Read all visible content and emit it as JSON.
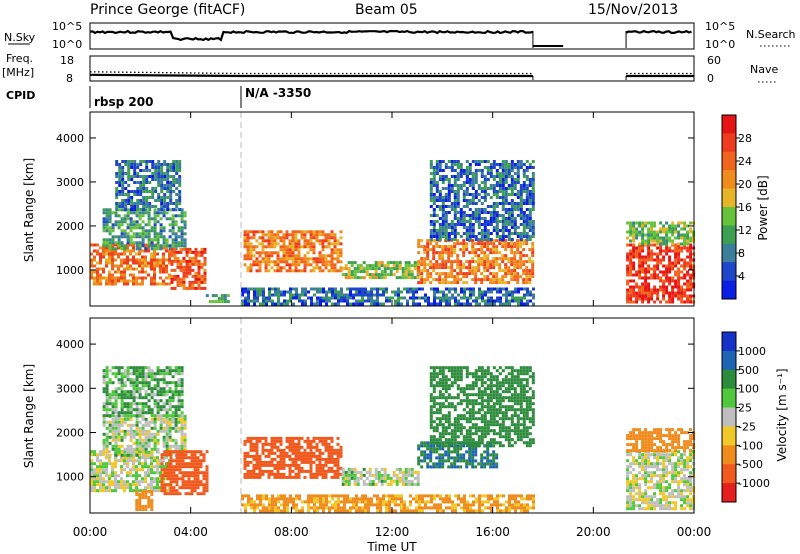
{
  "header": {
    "station": "Prince George (fitACF)",
    "beam": "Beam 05",
    "date": "15/Nov/2013"
  },
  "summary": {
    "nsky_label": "N.Sky",
    "nsky_ticks": [
      "10^5",
      "10^0"
    ],
    "nsearch_label": "N.Search",
    "nsearch_ticks": [
      "10^5",
      "10^0"
    ],
    "freq_label": "Freq.",
    "freq_unit": "[MHz]",
    "freq_ticks": [
      "18",
      "8"
    ],
    "nave_label": "Nave",
    "nave_ticks": [
      "60",
      "0"
    ],
    "cpid_label": "CPID",
    "cpid_segments": [
      {
        "start_hr": 0.0,
        "label": "rbsp 200"
      },
      {
        "start_hr": 6.0,
        "label": "N/A -3350"
      }
    ]
  },
  "axes": {
    "x_label": "Time UT",
    "x_ticks": [
      "00:00",
      "04:00",
      "08:00",
      "12:00",
      "16:00",
      "20:00",
      "00:00"
    ],
    "x_range_hr": [
      0,
      24
    ],
    "y_label": "Slant Range [km]",
    "y_ticks": [
      "1000",
      "2000",
      "3000",
      "4000"
    ],
    "y_range_km": [
      180,
      4590
    ]
  },
  "colors": {
    "power_scale": [
      "#0a1ee6",
      "#1e46c8",
      "#3c7f9a",
      "#3ca050",
      "#66c23a",
      "#e6b428",
      "#f08c1e",
      "#f0641e",
      "#f03c1e",
      "#e61414"
    ],
    "velocity_scale": [
      "#1432c8",
      "#1e64b4",
      "#2d8c3c",
      "#50c83c",
      "#bebebe",
      "#f0c828",
      "#f08c1e",
      "#f05a1e",
      "#e61e1e"
    ]
  },
  "chart_data": [
    {
      "type": "line",
      "title": "N.Sky / N.Search",
      "x_range_hr": [
        0,
        24
      ],
      "log_scale": true,
      "segments_hr": [
        [
          0.0,
          17.6
        ],
        [
          21.3,
          24.0
        ]
      ],
      "nsky_level": "near 10^5 with dips around 04:00 and 17:30",
      "nsearch_level": "near 10^0"
    },
    {
      "type": "line",
      "title": "Freq. / Nave",
      "x_range_hr": [
        0,
        24
      ],
      "freq_mhz": [
        {
          "x_hr": 0,
          "value": 10.5
        },
        {
          "x_hr": 6,
          "value": 10.0
        },
        {
          "x_hr": 17.6,
          "value": 10.0
        },
        {
          "x_hr": 21.3,
          "value": 10.0
        },
        {
          "x_hr": 24,
          "value": 10.0
        }
      ],
      "nave": [
        {
          "x_hr": 0,
          "value": 22
        },
        {
          "x_hr": 6,
          "value": 18
        },
        {
          "x_hr": 17.6,
          "value": 18
        },
        {
          "x_hr": 21.3,
          "value": 18
        },
        {
          "x_hr": 24,
          "value": 18
        }
      ]
    },
    {
      "type": "heatmap",
      "title": "Power",
      "colorbar_label": "Power [dB]",
      "colorbar_ticks": [
        "28",
        "24",
        "20",
        "16",
        "12",
        "8",
        "4"
      ],
      "value_range": [
        0,
        30
      ],
      "ylim": [
        180,
        4590
      ],
      "regions": [
        {
          "name": "band-a",
          "t0": 0.0,
          "t1": 3.2,
          "r0": 700,
          "r1": 1600,
          "p": 22
        },
        {
          "name": "band-b",
          "t0": 0.5,
          "t1": 3.8,
          "r0": 1500,
          "r1": 2400,
          "p": 10
        },
        {
          "name": "band-c",
          "t0": 3.2,
          "t1": 4.6,
          "r0": 600,
          "r1": 1500,
          "p": 24
        },
        {
          "name": "band-d",
          "t0": 1.0,
          "t1": 3.6,
          "r0": 2400,
          "r1": 3500,
          "p": 7
        },
        {
          "name": "band-e",
          "t0": 4.6,
          "t1": 5.5,
          "r0": 300,
          "r1": 450,
          "p": 10
        },
        {
          "name": "band-f",
          "t0": 6.1,
          "t1": 10.0,
          "r0": 1000,
          "r1": 1900,
          "p": 21
        },
        {
          "name": "band-g",
          "t0": 6.0,
          "t1": 17.6,
          "r0": 200,
          "r1": 600,
          "p": 6
        },
        {
          "name": "band-h",
          "t0": 10.0,
          "t1": 13.0,
          "r0": 800,
          "r1": 1200,
          "p": 14
        },
        {
          "name": "band-i",
          "t0": 13.0,
          "t1": 17.6,
          "r0": 700,
          "r1": 1700,
          "p": 21
        },
        {
          "name": "band-j",
          "t0": 13.5,
          "t1": 17.6,
          "r0": 1700,
          "r1": 3500,
          "p": 6
        },
        {
          "name": "band-k",
          "t0": 21.3,
          "t1": 24.0,
          "r0": 300,
          "r1": 1600,
          "p": 26
        },
        {
          "name": "band-l",
          "t0": 21.3,
          "t1": 24.0,
          "r0": 1600,
          "r1": 2100,
          "p": 13
        }
      ]
    },
    {
      "type": "heatmap",
      "title": "Velocity",
      "colorbar_label": "Velocity [m s⁻¹]",
      "colorbar_ticks": [
        "1000",
        "500",
        "100",
        "25",
        "-25",
        "-100",
        "-500",
        "-1000"
      ],
      "value_range": [
        -1000,
        1000
      ],
      "ylim": [
        180,
        4590
      ],
      "regions": [
        {
          "name": "band-a",
          "t0": 0.0,
          "t1": 3.2,
          "r0": 700,
          "r1": 1600,
          "v": 0
        },
        {
          "name": "band-b",
          "t0": 0.5,
          "t1": 3.8,
          "r0": 1500,
          "r1": 2400,
          "v": 10
        },
        {
          "name": "band-c",
          "t0": 2.8,
          "t1": 4.6,
          "r0": 600,
          "r1": 1600,
          "v": -450
        },
        {
          "name": "band-d",
          "t0": 0.5,
          "t1": 3.6,
          "r0": 2400,
          "r1": 3500,
          "v": 60
        },
        {
          "name": "band-e",
          "t0": 1.8,
          "t1": 2.4,
          "r0": 250,
          "r1": 700,
          "v": -120
        },
        {
          "name": "band-f",
          "t0": 6.1,
          "t1": 10.0,
          "r0": 1000,
          "r1": 1900,
          "v": -450
        },
        {
          "name": "band-g",
          "t0": 6.0,
          "t1": 17.6,
          "r0": 200,
          "r1": 600,
          "v": -90
        },
        {
          "name": "band-h",
          "t0": 10.0,
          "t1": 13.0,
          "r0": 800,
          "r1": 1200,
          "v": 10
        },
        {
          "name": "band-i",
          "t0": 13.0,
          "t1": 16.2,
          "r0": 1200,
          "r1": 1800,
          "v": 300
        },
        {
          "name": "band-j",
          "t0": 13.5,
          "t1": 17.6,
          "r0": 1700,
          "r1": 3500,
          "v": 120
        },
        {
          "name": "band-k",
          "t0": 21.3,
          "t1": 24.0,
          "r0": 300,
          "r1": 1600,
          "v": 0
        },
        {
          "name": "band-l",
          "t0": 21.3,
          "t1": 24.0,
          "r0": 1600,
          "r1": 2100,
          "v": -120
        }
      ]
    }
  ]
}
